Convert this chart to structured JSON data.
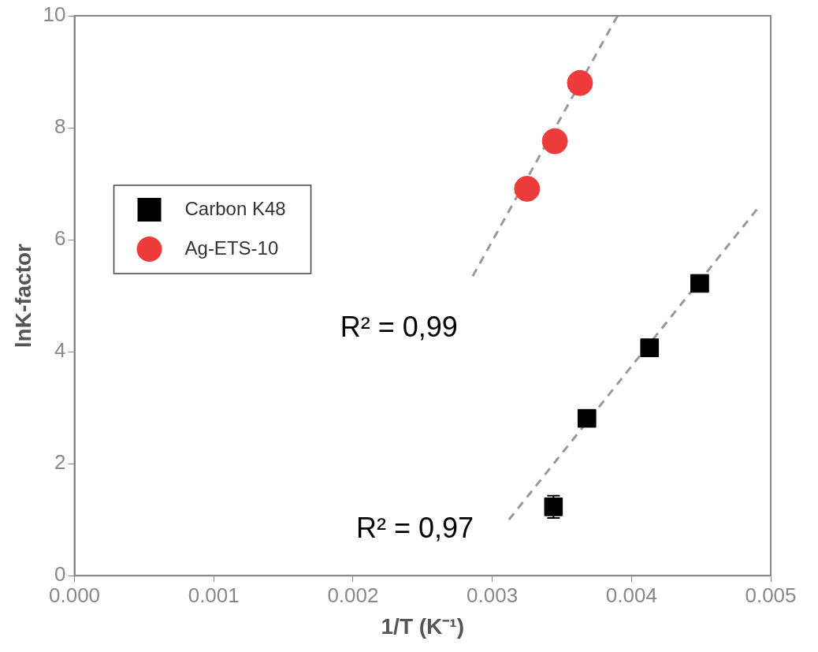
{
  "chart_data": {
    "type": "scatter",
    "xlabel": "1/T (K⁻¹)",
    "ylabel": "lnK-factor",
    "xlim": [
      0,
      0.005
    ],
    "ylim": [
      0,
      10
    ],
    "xticks": [
      {
        "value": 0,
        "label": "0.000"
      },
      {
        "value": 0.001,
        "label": "0.001"
      },
      {
        "value": 0.002,
        "label": "0.002"
      },
      {
        "value": 0.003,
        "label": "0.003"
      },
      {
        "value": 0.004,
        "label": "0.004"
      },
      {
        "value": 0.005,
        "label": "0.005"
      }
    ],
    "yticks": [
      0,
      2,
      4,
      6,
      8,
      10
    ],
    "grid": false,
    "legend": "left",
    "series": [
      {
        "name": "Carbon K48",
        "marker": "square",
        "color": "#000000",
        "x": [
          0.00344,
          0.00368,
          0.00413,
          0.00449
        ],
        "values": [
          1.23,
          2.81,
          4.07,
          5.22
        ],
        "errors": [
          0.2,
          null,
          null,
          null
        ]
      },
      {
        "name": "Ag-ETS-10",
        "marker": "circle",
        "color": "#ee3b3b",
        "x": [
          0.00325,
          0.00345,
          0.00363
        ],
        "values": [
          6.91,
          7.76,
          8.8
        ]
      },
      {
        "type": "line",
        "marker": "none",
        "line_style": "dashed",
        "color": "#999999",
        "x": [
          0.00286,
          0.0039
        ],
        "values": [
          5.35,
          10
        ]
      },
      {
        "type": "line",
        "marker": "none",
        "line_style": "dashed",
        "color": "#999999",
        "x": [
          0.00312,
          0.0049
        ],
        "values": [
          1.0,
          6.54
        ]
      }
    ],
    "annotations": [
      "R² = 0,99",
      "R² = 0,97"
    ]
  }
}
